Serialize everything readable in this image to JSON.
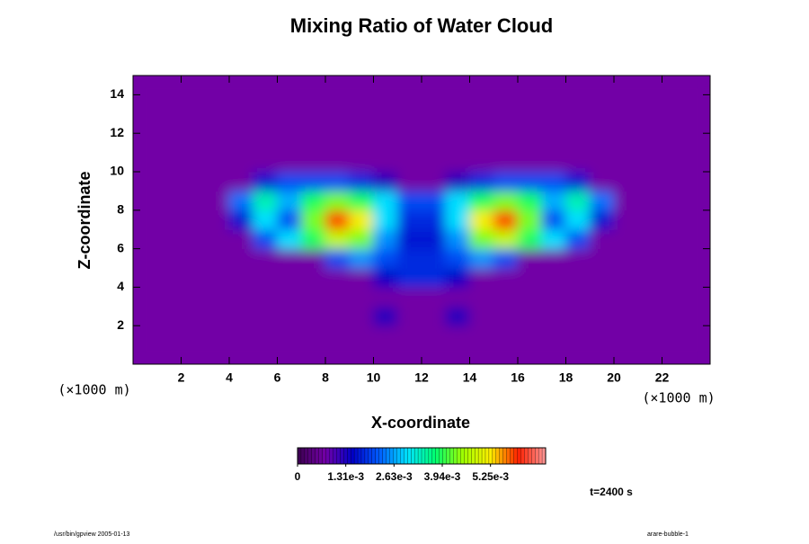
{
  "chart_data": {
    "type": "contour",
    "title": "Mixing Ratio of Water Cloud",
    "x_label": "X-coordinate",
    "y_label": "Z-coordinate",
    "x_unit": "(×1000 m)",
    "y_unit": "(×1000 m)",
    "annotation": "t=2400 s",
    "footer_left": "/usr/bin/gpview 2005-01-13",
    "footer_right": "arare-bubble-1",
    "xlim": [
      0,
      24
    ],
    "ylim": [
      0,
      15
    ],
    "xticks": [
      2,
      4,
      6,
      8,
      10,
      12,
      14,
      16,
      18,
      20,
      22
    ],
    "yticks": [
      2,
      4,
      6,
      8,
      10,
      12,
      14
    ],
    "x": [
      0.5,
      1.5,
      2.5,
      3.5,
      4.5,
      5.5,
      6.5,
      7.5,
      8.5,
      9.5,
      10.5,
      11.5,
      12.5,
      13.5,
      14.5,
      15.5,
      16.5,
      17.5,
      18.5,
      19.5,
      20.5,
      21.5,
      22.5,
      23.5
    ],
    "y": [
      0.5,
      1.5,
      2.5,
      3.5,
      4.5,
      5.5,
      6.5,
      7.5,
      8.5,
      9.5,
      10.5,
      11.5,
      12.5,
      13.5,
      14.5
    ],
    "z": [
      [
        0,
        0,
        0,
        0,
        0,
        0,
        0,
        0,
        0,
        0,
        0,
        0,
        0,
        0,
        0,
        0,
        0,
        0,
        0,
        0,
        0,
        0,
        0,
        0
      ],
      [
        0,
        0,
        0,
        0,
        0,
        0,
        0,
        0,
        0,
        0,
        0,
        0,
        0,
        0,
        0,
        0,
        0,
        0,
        0,
        0,
        0,
        0,
        0,
        0
      ],
      [
        0,
        0,
        0,
        0,
        0,
        0,
        0,
        0,
        0,
        0,
        0.0006,
        0,
        0,
        0.0006,
        0,
        0,
        0,
        0,
        0,
        0,
        0,
        0,
        0,
        0
      ],
      [
        0,
        0,
        0,
        0,
        0,
        0,
        0,
        0,
        0,
        0,
        0,
        0,
        0,
        0,
        0,
        0,
        0,
        0,
        0,
        0,
        0,
        0,
        0,
        0
      ],
      [
        0,
        0,
        0,
        0,
        0,
        0,
        0,
        0,
        0,
        0,
        0.0008,
        0.0012,
        0.0012,
        0.0008,
        0,
        0,
        0,
        0,
        0,
        0,
        0,
        0,
        0,
        0
      ],
      [
        0,
        0,
        0,
        0,
        0,
        0,
        0,
        0,
        0.0015,
        0.002,
        0.0015,
        0.0012,
        0.0012,
        0.0015,
        0.002,
        0.0015,
        0,
        0,
        0,
        0,
        0,
        0,
        0,
        0
      ],
      [
        0,
        0,
        0,
        0,
        0,
        0.0015,
        0.0025,
        0.0035,
        0.0045,
        0.004,
        0.002,
        0.001,
        0.001,
        0.002,
        0.004,
        0.0045,
        0.0035,
        0.0025,
        0.0015,
        0,
        0,
        0,
        0,
        0
      ],
      [
        0,
        0,
        0,
        0,
        0.001,
        0.0025,
        0.0015,
        0.004,
        0.0058,
        0.005,
        0.0025,
        0.0012,
        0.0012,
        0.0025,
        0.005,
        0.0058,
        0.004,
        0.0015,
        0.0025,
        0.001,
        0,
        0,
        0,
        0
      ],
      [
        0,
        0,
        0,
        0,
        0.0018,
        0.003,
        0.0022,
        0.0035,
        0.004,
        0.0035,
        0.0025,
        0.0015,
        0.0015,
        0.0025,
        0.0035,
        0.004,
        0.0035,
        0.0022,
        0.003,
        0.0018,
        0,
        0,
        0,
        0
      ],
      [
        0,
        0,
        0,
        0,
        0,
        0.001,
        0.0015,
        0.0015,
        0.0015,
        0.0012,
        0.0006,
        0,
        0,
        0.0006,
        0.0012,
        0.0015,
        0.0015,
        0.0015,
        0.001,
        0,
        0,
        0,
        0,
        0
      ],
      [
        0,
        0,
        0,
        0,
        0,
        0,
        0,
        0,
        0,
        0,
        0,
        0,
        0,
        0,
        0,
        0,
        0,
        0,
        0,
        0,
        0,
        0,
        0,
        0
      ],
      [
        0,
        0,
        0,
        0,
        0,
        0,
        0,
        0,
        0,
        0,
        0,
        0,
        0,
        0,
        0,
        0,
        0,
        0,
        0,
        0,
        0,
        0,
        0,
        0
      ],
      [
        0,
        0,
        0,
        0,
        0,
        0,
        0,
        0,
        0,
        0,
        0,
        0,
        0,
        0,
        0,
        0,
        0,
        0,
        0,
        0,
        0,
        0,
        0,
        0
      ],
      [
        0,
        0,
        0,
        0,
        0,
        0,
        0,
        0,
        0,
        0,
        0,
        0,
        0,
        0,
        0,
        0,
        0,
        0,
        0,
        0,
        0,
        0,
        0,
        0
      ],
      [
        0,
        0,
        0,
        0,
        0,
        0,
        0,
        0,
        0,
        0,
        0,
        0,
        0,
        0,
        0,
        0,
        0,
        0,
        0,
        0,
        0,
        0,
        0,
        0
      ]
    ],
    "clim": [
      0,
      0.00675
    ],
    "colorbar_ticks": [
      0,
      {
        "value": 0.0013125,
        "label": "1.31e-3"
      },
      {
        "value": 0.002625,
        "label": "2.63e-3"
      },
      {
        "value": 0.0039375,
        "label": "3.94e-3"
      },
      {
        "value": 0.00525,
        "label": "5.25e-3"
      }
    ],
    "colormap": [
      "#3c0050",
      "#7200a6",
      "#0000c8",
      "#0060ff",
      "#00e4ff",
      "#00ff70",
      "#a0ff00",
      "#ffee00",
      "#ff2000",
      "#ff9a9a"
    ]
  }
}
